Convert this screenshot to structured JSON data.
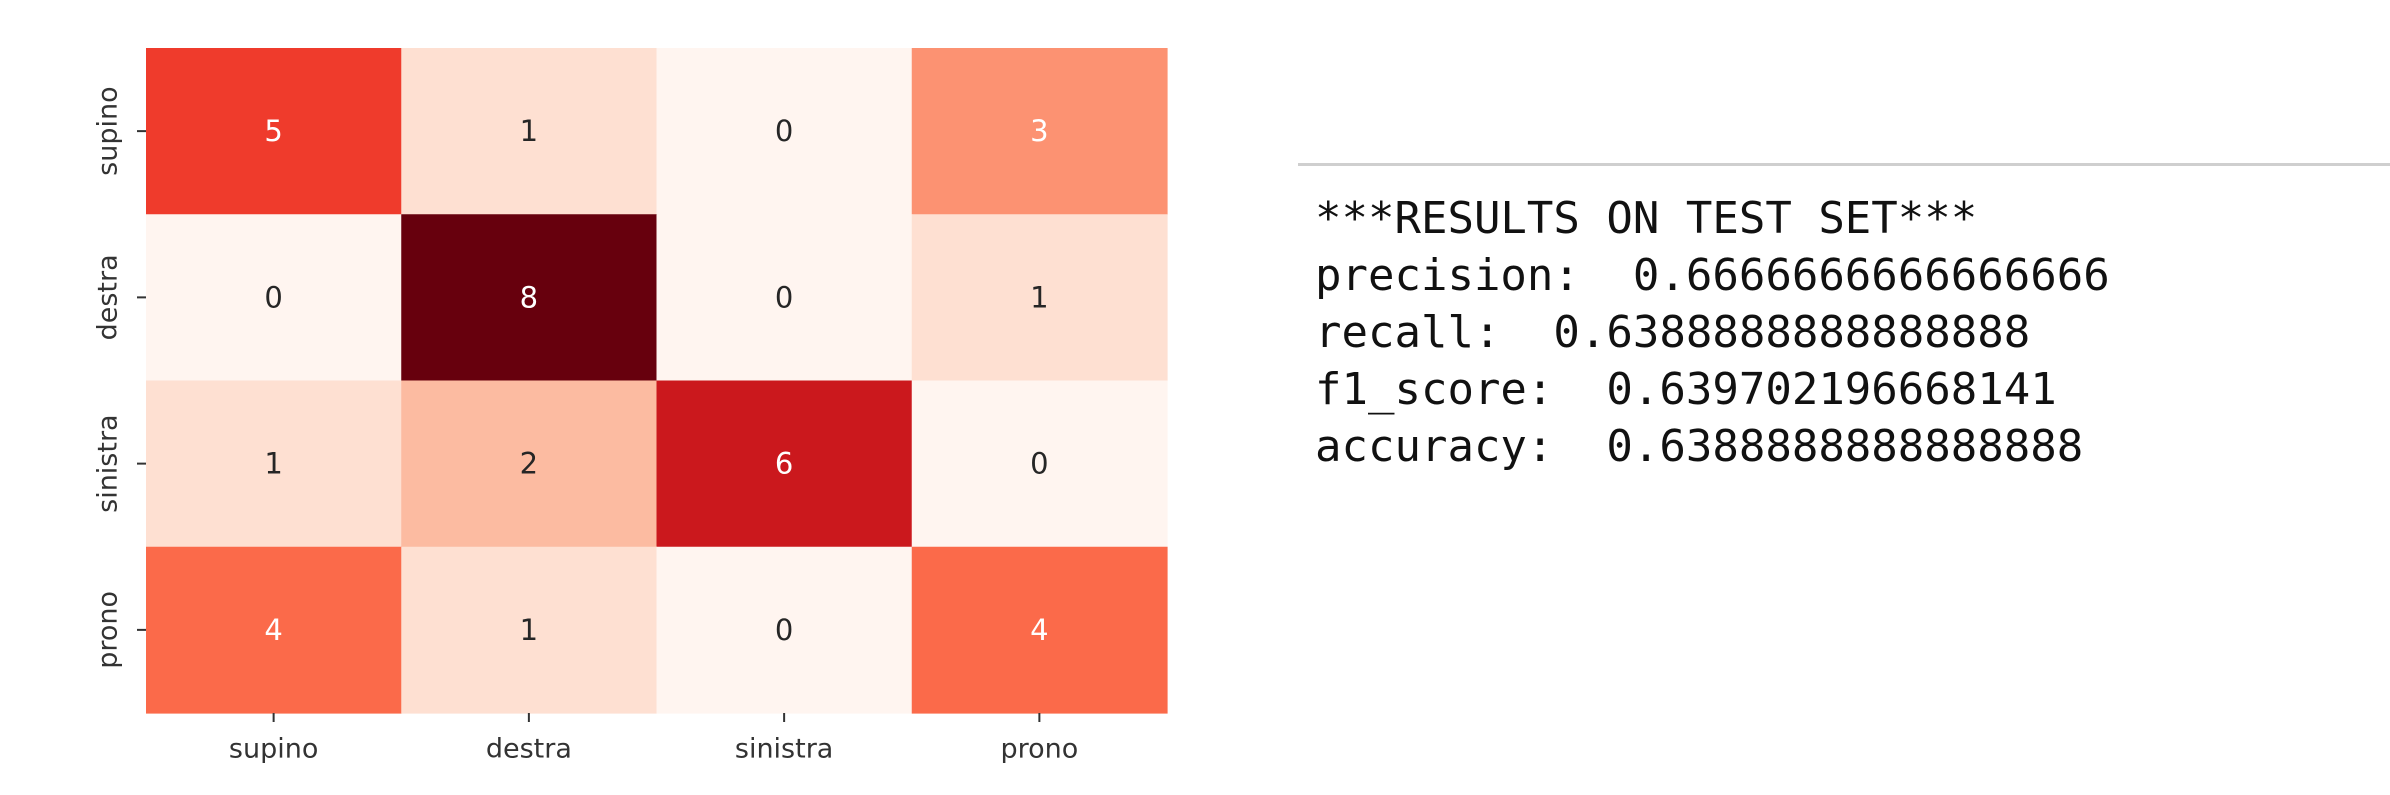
{
  "chart_data": {
    "type": "heatmap",
    "title": "",
    "xlabel": "",
    "ylabel": "",
    "x_categories": [
      "supino",
      "destra",
      "sinistra",
      "prono"
    ],
    "y_categories": [
      "supino",
      "destra",
      "sinistra",
      "prono"
    ],
    "values": [
      [
        5,
        1,
        0,
        3
      ],
      [
        0,
        8,
        0,
        1
      ],
      [
        1,
        2,
        6,
        0
      ],
      [
        4,
        1,
        0,
        4
      ]
    ],
    "colormap": "Reds",
    "vmin": 0,
    "vmax": 8,
    "colorbar": false,
    "annotations": true
  },
  "output": {
    "heading": "***RESULTS ON TEST SET***",
    "lines": [
      "precision:  0.6666666666666666",
      "recall:  0.6388888888888888",
      "f1_score:  0.639702196668141",
      "accuracy:  0.6388888888888888"
    ]
  }
}
